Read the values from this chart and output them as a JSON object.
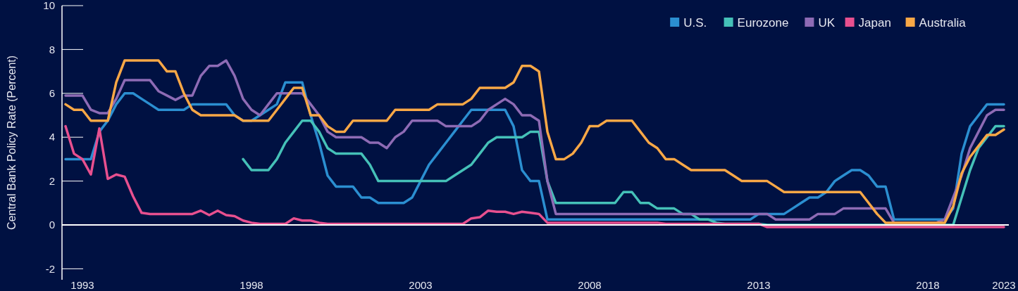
{
  "chart_data": {
    "type": "line",
    "ylabel": "Central Bank Policy Rate (Percent)",
    "categories": [
      null,
      null,
      "1993",
      null,
      null,
      null,
      null,
      null,
      null,
      null,
      null,
      null,
      null,
      null,
      null,
      null,
      null,
      null,
      null,
      null,
      null,
      null,
      "1998",
      null,
      null,
      null,
      null,
      null,
      null,
      null,
      null,
      null,
      null,
      null,
      null,
      null,
      null,
      null,
      null,
      null,
      null,
      null,
      "2003",
      null,
      null,
      null,
      null,
      null,
      null,
      null,
      null,
      null,
      null,
      null,
      null,
      null,
      null,
      null,
      null,
      null,
      null,
      null,
      "2008",
      null,
      null,
      null,
      null,
      null,
      null,
      null,
      null,
      null,
      null,
      null,
      null,
      null,
      null,
      null,
      null,
      null,
      null,
      null,
      "2013",
      null,
      null,
      null,
      null,
      null,
      null,
      null,
      null,
      null,
      null,
      null,
      null,
      null,
      null,
      null,
      null,
      null,
      null,
      null,
      "2018",
      null,
      null,
      null,
      null,
      null,
      null,
      null,
      null,
      "2023"
    ],
    "series": [
      {
        "name": "U.S.",
        "color": "#2b8fd1",
        "values": [
          3,
          3,
          3,
          3,
          4.25,
          4.75,
          5.5,
          6,
          6,
          5.75,
          5.5,
          5.25,
          5.25,
          5.25,
          5.25,
          5.5,
          5.5,
          5.5,
          5.5,
          5.5,
          5,
          4.75,
          4.75,
          5,
          5.25,
          5.5,
          6.5,
          6.5,
          6.5,
          5,
          3.75,
          2.25,
          1.75,
          1.75,
          1.75,
          1.25,
          1.25,
          1,
          1,
          1,
          1,
          1.25,
          2,
          2.75,
          3.25,
          3.75,
          4.25,
          4.75,
          5.25,
          5.25,
          5.25,
          5.25,
          5.25,
          4.5,
          2.5,
          2,
          2,
          0.25,
          0.25,
          0.25,
          0.25,
          0.25,
          0.25,
          0.25,
          0.25,
          0.25,
          0.25,
          0.25,
          0.25,
          0.25,
          0.25,
          0.25,
          0.25,
          0.25,
          0.25,
          0.25,
          0.25,
          0.25,
          0.25,
          0.25,
          0.25,
          0.25,
          0.5,
          0.5,
          0.5,
          0.5,
          0.75,
          1,
          1.25,
          1.25,
          1.5,
          2,
          2.25,
          2.5,
          2.5,
          2.25,
          1.75,
          1.75,
          0.25,
          0.25,
          0.25,
          0.25,
          0.25,
          0.25,
          0.25,
          0.75,
          3.25,
          4.5,
          5,
          5.5,
          5.5,
          5.5
        ]
      },
      {
        "name": "Eurozone",
        "color": "#45c1b8",
        "values": [
          null,
          null,
          null,
          null,
          null,
          null,
          null,
          null,
          null,
          null,
          null,
          null,
          null,
          null,
          null,
          null,
          null,
          null,
          null,
          null,
          null,
          3,
          2.5,
          2.5,
          2.5,
          3,
          3.75,
          4.25,
          4.75,
          4.75,
          4.25,
          3.5,
          3.25,
          3.25,
          3.25,
          3.25,
          2.75,
          2,
          2,
          2,
          2,
          2,
          2,
          2,
          2,
          2,
          2.25,
          2.5,
          2.75,
          3.25,
          3.75,
          4,
          4,
          4,
          4,
          4.25,
          4.25,
          2,
          1,
          1,
          1,
          1,
          1,
          1,
          1,
          1,
          1.5,
          1.5,
          1,
          1,
          0.75,
          0.75,
          0.75,
          0.5,
          0.5,
          0.25,
          0.25,
          0.1,
          0.05,
          0.05,
          0.05,
          0.05,
          0.05,
          0,
          0,
          0,
          0,
          0,
          0,
          0,
          0,
          0,
          0,
          0,
          0,
          0,
          0,
          0,
          0,
          0,
          0,
          0,
          0,
          0,
          0,
          0,
          1.25,
          2.5,
          3.5,
          4,
          4.5,
          4.5
        ]
      },
      {
        "name": "UK",
        "color": "#8e6bb5",
        "values": [
          5.9,
          5.9,
          5.9,
          5.25,
          5.1,
          5.1,
          5.75,
          6.6,
          6.6,
          6.6,
          6.6,
          6.1,
          5.9,
          5.7,
          5.9,
          5.9,
          6.8,
          7.25,
          7.25,
          7.5,
          6.8,
          5.75,
          5.25,
          5,
          5.5,
          6,
          6,
          6,
          6,
          5.5,
          5,
          4.25,
          4,
          4,
          4,
          4,
          3.75,
          3.75,
          3.5,
          4,
          4.25,
          4.75,
          4.75,
          4.75,
          4.75,
          4.5,
          4.5,
          4.5,
          4.5,
          4.75,
          5.25,
          5.5,
          5.75,
          5.5,
          5,
          5,
          4.75,
          2,
          0.5,
          0.5,
          0.5,
          0.5,
          0.5,
          0.5,
          0.5,
          0.5,
          0.5,
          0.5,
          0.5,
          0.5,
          0.5,
          0.5,
          0.5,
          0.5,
          0.5,
          0.5,
          0.5,
          0.5,
          0.5,
          0.5,
          0.5,
          0.5,
          0.5,
          0.5,
          0.25,
          0.25,
          0.25,
          0.25,
          0.25,
          0.5,
          0.5,
          0.5,
          0.75,
          0.75,
          0.75,
          0.75,
          0.75,
          0.75,
          0.1,
          0.1,
          0.1,
          0.1,
          0.1,
          0.1,
          0.25,
          1.25,
          2.25,
          3.5,
          4.25,
          5,
          5.25,
          5.25
        ]
      },
      {
        "name": "Japan",
        "color": "#e8508f",
        "values": [
          4.5,
          3.25,
          3,
          2.3,
          4.4,
          2.1,
          2.3,
          2.2,
          1.3,
          0.55,
          0.5,
          0.5,
          0.5,
          0.5,
          0.5,
          0.5,
          0.65,
          0.45,
          0.65,
          0.45,
          0.4,
          0.2,
          0.1,
          0.05,
          0.05,
          0.05,
          0.05,
          0.3,
          0.2,
          0.2,
          0.1,
          0.05,
          0.05,
          0.05,
          0.05,
          0.05,
          0.05,
          0.05,
          0.05,
          0.05,
          0.05,
          0.05,
          0.05,
          0.05,
          0.05,
          0.05,
          0.05,
          0.05,
          0.3,
          0.35,
          0.65,
          0.6,
          0.6,
          0.5,
          0.6,
          0.55,
          0.5,
          0.1,
          0.1,
          0.1,
          0.1,
          0.1,
          0.1,
          0.1,
          0.1,
          0.1,
          0.1,
          0.1,
          0.1,
          0.1,
          0.1,
          0.05,
          0.05,
          0.05,
          0.05,
          0.05,
          0.05,
          0.05,
          0.05,
          0.05,
          0.05,
          0.05,
          0.05,
          -0.1,
          -0.1,
          -0.1,
          -0.1,
          -0.1,
          -0.1,
          -0.1,
          -0.1,
          -0.1,
          -0.1,
          -0.1,
          -0.1,
          -0.1,
          -0.1,
          -0.1,
          -0.1,
          -0.1,
          -0.1,
          -0.1,
          -0.1,
          -0.1,
          -0.1,
          -0.1,
          -0.1,
          -0.1,
          -0.1,
          -0.1,
          -0.1,
          -0.1
        ]
      },
      {
        "name": "Australia",
        "color": "#f9a846",
        "values": [
          5.5,
          5.25,
          5.25,
          4.75,
          4.75,
          4.75,
          6.5,
          7.5,
          7.5,
          7.5,
          7.5,
          7.5,
          7,
          7,
          6,
          5.25,
          5,
          5,
          5,
          5,
          5,
          4.75,
          4.75,
          4.75,
          4.75,
          5.25,
          5.75,
          6.25,
          6.25,
          5,
          5,
          4.5,
          4.25,
          4.25,
          4.75,
          4.75,
          4.75,
          4.75,
          4.75,
          5.25,
          5.25,
          5.25,
          5.25,
          5.25,
          5.5,
          5.5,
          5.5,
          5.5,
          5.75,
          6.25,
          6.25,
          6.25,
          6.25,
          6.5,
          7.25,
          7.25,
          7,
          4.25,
          3,
          3,
          3.25,
          3.75,
          4.5,
          4.5,
          4.75,
          4.75,
          4.75,
          4.75,
          4.25,
          3.75,
          3.5,
          3,
          3,
          2.75,
          2.5,
          2.5,
          2.5,
          2.5,
          2.5,
          2.25,
          2,
          2,
          2,
          2,
          1.75,
          1.5,
          1.5,
          1.5,
          1.5,
          1.5,
          1.5,
          1.5,
          1.5,
          1.5,
          1.5,
          1,
          0.5,
          0.1,
          0.1,
          0.1,
          0.1,
          0.1,
          0.1,
          0.1,
          0.1,
          0.85,
          2.35,
          3.1,
          3.6,
          4.1,
          4.1,
          4.35
        ]
      }
    ],
    "ylim": [
      -2.5,
      10
    ],
    "yticks": [
      -2,
      0,
      2,
      4,
      6,
      8,
      10
    ],
    "ref_lines": [
      {
        "axis": "y",
        "value": 0,
        "color": "#ffffff"
      }
    ],
    "legend": "top right"
  }
}
